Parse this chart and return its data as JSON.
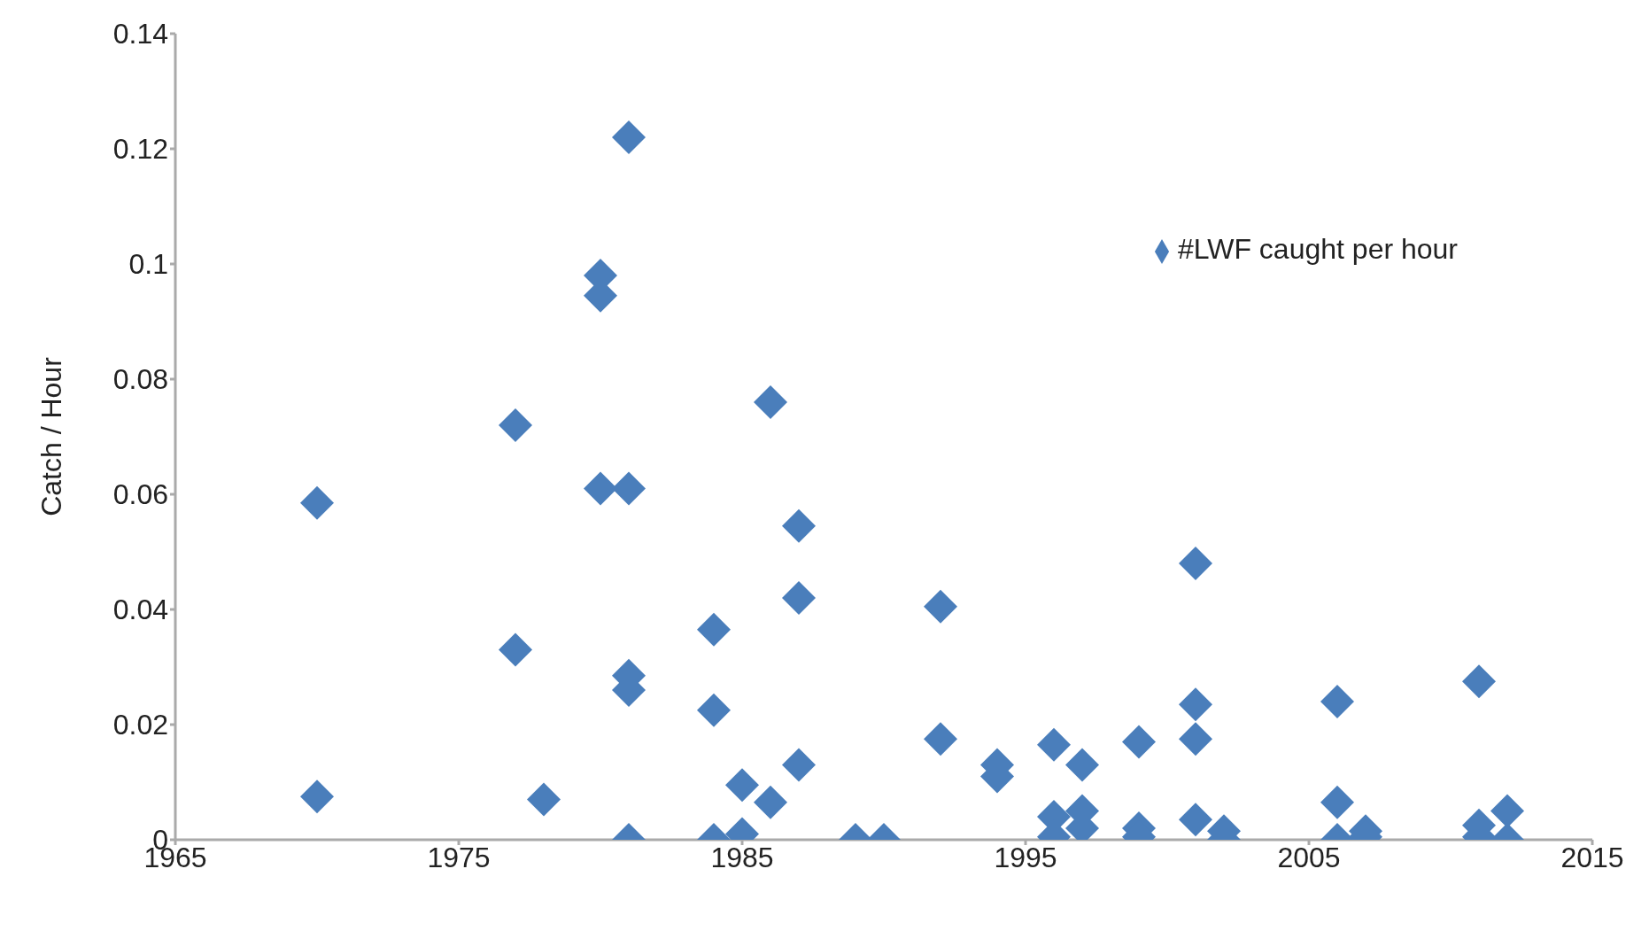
{
  "chart_data": {
    "type": "scatter",
    "ylabel": "Catch / Hour",
    "xlim": [
      1965,
      2015
    ],
    "xticks": [
      1965,
      1975,
      1985,
      1995,
      2005,
      2015
    ],
    "ylim": [
      0,
      0.14
    ],
    "yticks": [
      0,
      0.02,
      0.04,
      0.06,
      0.08,
      0.1,
      0.12,
      0.14
    ],
    "grid": false,
    "legend": "top right",
    "marker": "diamond",
    "series": [
      {
        "name": "#LWF caught per hour",
        "color": "#4a7ebb",
        "x": [
          1970,
          1970,
          1977,
          1977,
          1978,
          1980,
          1980,
          1980,
          1981,
          1981,
          1981,
          1981,
          1981,
          1984,
          1984,
          1984,
          1985,
          1985,
          1986,
          1986,
          1987,
          1987,
          1987,
          1989,
          1990,
          1992,
          1992,
          1994,
          1994,
          1996,
          1996,
          1996,
          1997,
          1997,
          1997,
          1999,
          1999,
          1999,
          2001,
          2001,
          2001,
          2001,
          2002,
          2002,
          2006,
          2006,
          2006,
          2007,
          2007,
          2011,
          2011,
          2011,
          2012,
          2012
        ],
        "values": [
          0.0585,
          0.0075,
          0.072,
          0.033,
          0.007,
          0.098,
          0.0945,
          0.061,
          0.122,
          0.061,
          0.0285,
          0.026,
          0,
          0.0365,
          0.0225,
          0,
          0.0095,
          0.001,
          0.076,
          0.0065,
          0.0545,
          0.042,
          0.013,
          0,
          0,
          0.0405,
          0.0175,
          0.013,
          0.011,
          0.0165,
          0.004,
          0.0005,
          0.013,
          0.005,
          0.002,
          0.017,
          0.002,
          0.0005,
          0.048,
          0.0235,
          0.0175,
          0.0035,
          0.0015,
          0,
          0.024,
          0.0065,
          0,
          0.0015,
          0.0005,
          0.0275,
          0.0025,
          0.0005,
          0.005,
          0
        ]
      }
    ]
  }
}
